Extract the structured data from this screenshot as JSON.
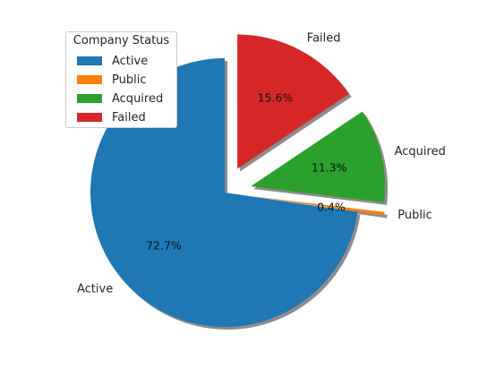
{
  "chart_data": {
    "type": "pie",
    "title": "",
    "legend_title": "Company Status",
    "legend_position": "upper-left",
    "start_angle_deg": 90,
    "direction": "counterclockwise",
    "shadow": true,
    "slices": [
      {
        "label": "Active",
        "pct": 72.7,
        "pct_label": "72.7%",
        "color": "#1f77b4",
        "explode": 0.0
      },
      {
        "label": "Public",
        "pct": 0.4,
        "pct_label": "0.4%",
        "color": "#ff7f0e",
        "explode": 0.2
      },
      {
        "label": "Acquired",
        "pct": 11.3,
        "pct_label": "11.3%",
        "color": "#2ca02c",
        "explode": 0.2
      },
      {
        "label": "Failed",
        "pct": 15.6,
        "pct_label": "15.6%",
        "color": "#d62728",
        "explode": 0.2
      }
    ]
  }
}
